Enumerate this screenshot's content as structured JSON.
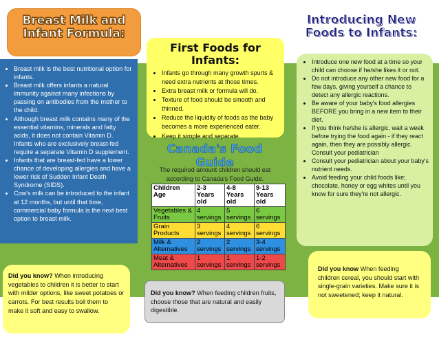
{
  "left": {
    "title": "Breast Milk and Infant Formula:",
    "bullets": [
      "Breast milk is the best nutritional option for infants.",
      "Breast milk offers infants a natural immunity against many infections by passing on antibodies from the mother to the child.",
      "Although breast milk contains many of the essential vitamins, minerals and fatty acids, it does not contain Vitamin D. Infants who are exclusively breast-fed require a separate Vitamin D supplement.",
      "Infants that are breast-fed have a lower chance of developing allergies  and have a lower risk of Sudden Infant Death Syndrome (SIDS).",
      "Cow's milk can be introduced to the infant at 12 months, but until that time, commercial baby formula is the next best option to breast milk."
    ]
  },
  "middle": {
    "title": "First Foods for Infants:",
    "bullets": [
      "Infants go through many growth spurts & need extra nutrients at those times.",
      "Extra breast milk or formula will do.",
      "Texture of food should be smooth and thinned.",
      "Reduce the liquidity of foods as the baby becomes a more experienced eater.",
      "Keep it simple and separate."
    ]
  },
  "guide": {
    "title": "Canada's Food Guide",
    "intro": "The required amount children should eat according to Canada's Food Guide.",
    "headers": [
      "Children Age",
      "2-3 Years old",
      "4-8 Years old",
      "9-13 Years old"
    ],
    "rows": [
      [
        "Vegetables & Fruits",
        "4 servings",
        "5 servings",
        "6 servings"
      ],
      [
        "Grain Products",
        "3 servings",
        "4 servings",
        "6 servings"
      ],
      [
        "Milk & Alternatives",
        "2 servings",
        "2 servings",
        "3-4 servings"
      ],
      [
        "Meat & Alternatives",
        "1 servings",
        "1 servings",
        "1-2 servings"
      ]
    ]
  },
  "right": {
    "title": "Introducing New Foods to Infants:",
    "bullets": [
      "Introduce one new food at a time so your child can choose if he/she likes it or not.",
      "Do not introduce any other new food for a few days, giving yourself a chance to detect any allergic reactions.",
      "Be aware of your baby's food allergies BEFORE you bring in a new item to their diet.",
      "If you think he/she is allergic, wait a week before trying the food again - if they react again, then they are possibly allergic. Consult your pediatrician",
      "Consult your pediatrician about your baby's nutrient needs.",
      "Avoid feeding your child foods like; chocolate, honey or egg whites until you know for sure they're not allergic."
    ]
  },
  "dyk_left": {
    "lead": "Did you know?",
    "text": " When introducing vegetables to children it is better to start with milder options, like sweet potatoes or carrots. For best results boil them to make it soft and easy to swallow."
  },
  "dyk_mid": {
    "lead": "Did you know?",
    "text": " When feeding children fruits, choose those that are natural and easily digestible."
  },
  "dyk_right": {
    "lead": "Did you know",
    "text": " When feeding children cereal, you should start with single-grain varieties. Make sure it is not sweetened; keep it natural."
  }
}
